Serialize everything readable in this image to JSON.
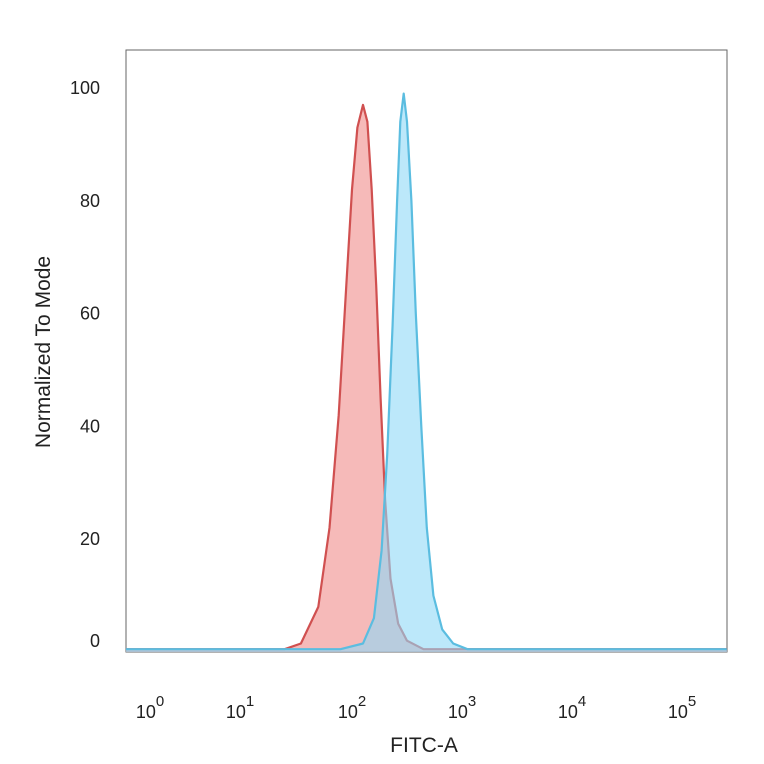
{
  "chart_data": {
    "type": "area",
    "title": "",
    "xlabel": "FITC-A",
    "ylabel": "Normalized To Mode",
    "x_scale": "log",
    "xlim": [
      0.5,
      250000
    ],
    "ylim": [
      0,
      100
    ],
    "grid": false,
    "legend": "none",
    "x_ticks": [
      {
        "base": "10",
        "exp": "0",
        "value": 1
      },
      {
        "base": "10",
        "exp": "1",
        "value": 10
      },
      {
        "base": "10",
        "exp": "2",
        "value": 100
      },
      {
        "base": "10",
        "exp": "3",
        "value": 1000
      },
      {
        "base": "10",
        "exp": "4",
        "value": 10000
      },
      {
        "base": "10",
        "exp": "5",
        "value": 100000
      }
    ],
    "y_ticks": [
      "0",
      "20",
      "40",
      "60",
      "80",
      "100"
    ],
    "series": [
      {
        "color": "#d05050",
        "fill": "#f08c8a",
        "points": [
          [
            0.5,
            0.5
          ],
          [
            25,
            0.5
          ],
          [
            35,
            1.5
          ],
          [
            50,
            8
          ],
          [
            63,
            22
          ],
          [
            76,
            42
          ],
          [
            89,
            65
          ],
          [
            100,
            82
          ],
          [
            112,
            93
          ],
          [
            126,
            97
          ],
          [
            138,
            94
          ],
          [
            151,
            82
          ],
          [
            166,
            65
          ],
          [
            182,
            45
          ],
          [
            200,
            27
          ],
          [
            224,
            13
          ],
          [
            263,
            5
          ],
          [
            316,
            2
          ],
          [
            447,
            0.5
          ],
          [
            250000,
            0.5
          ]
        ]
      },
      {
        "color": "#5bbde0",
        "fill": "#8fd8f7",
        "points": [
          [
            0.5,
            0.5
          ],
          [
            79,
            0.5
          ],
          [
            126,
            1.5
          ],
          [
            158,
            6
          ],
          [
            186,
            18
          ],
          [
            209,
            35
          ],
          [
            234,
            58
          ],
          [
            257,
            80
          ],
          [
            275,
            94
          ],
          [
            295,
            99
          ],
          [
            316,
            94
          ],
          [
            347,
            80
          ],
          [
            380,
            60
          ],
          [
            427,
            40
          ],
          [
            479,
            22
          ],
          [
            550,
            10
          ],
          [
            661,
            4
          ],
          [
            832,
            1.5
          ],
          [
            1122,
            0.5
          ],
          [
            250000,
            0.5
          ]
        ]
      }
    ]
  }
}
